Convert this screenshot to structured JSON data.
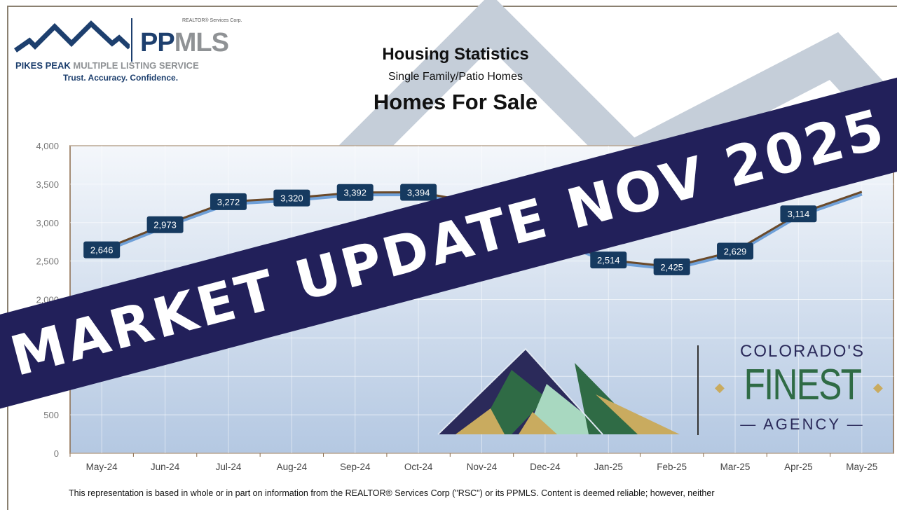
{
  "header": {
    "logo": {
      "realtor": "REALTOR® Services Corp.",
      "pp": "PP",
      "mls": "MLS",
      "full_bold": "PIKES PEAK",
      "full_rest": "MULTIPLE LISTING SERVICE",
      "tagline": "Trust. Accuracy. Confidence."
    },
    "title": "Housing Statistics",
    "subtitle": "Single Family/Patio Homes",
    "chart_title": "Homes For Sale"
  },
  "chart_data": {
    "type": "line",
    "title": "Homes For Sale",
    "categories": [
      "May-24",
      "Jun-24",
      "Jul-24",
      "Aug-24",
      "Sep-24",
      "Oct-24",
      "Nov-24",
      "Dec-24",
      "Jan-25",
      "Feb-25",
      "Mar-25",
      "Apr-25",
      "May-25"
    ],
    "values": [
      2646,
      2973,
      3272,
      3320,
      3392,
      3394,
      3250,
      2850,
      2514,
      2425,
      2629,
      3114,
      3400
    ],
    "data_labels": [
      "2,646",
      "2,973",
      "3,272",
      "3,320",
      "3,392",
      "3,394",
      null,
      null,
      "2,514",
      "2,425",
      "2,629",
      "3,114",
      null
    ],
    "ylim": [
      0,
      4000
    ],
    "yticks": [
      "0",
      "500",
      "1,000",
      "1,500",
      "2,000",
      "2,500",
      "3,000",
      "3,500",
      "4,000"
    ],
    "grid": true,
    "colors": {
      "line": "#6b4a2a",
      "label_bg": "#163a60",
      "plot_top": "#f4f7fb",
      "plot_bottom": "#b4c8e2"
    }
  },
  "footer": {
    "disclaimer": "This representation is based in whole or in part on information from the REALTOR® Services Corp (\"RSC\") or its PPMLS. Content is deemed reliable; however, neither"
  },
  "banner": {
    "text": "MARKET UPDATE NOV 2025",
    "color": "#22205a"
  },
  "agency_logo": {
    "line1": "COLORADO'S",
    "line2": "FINEST",
    "line3": "AGENCY"
  }
}
